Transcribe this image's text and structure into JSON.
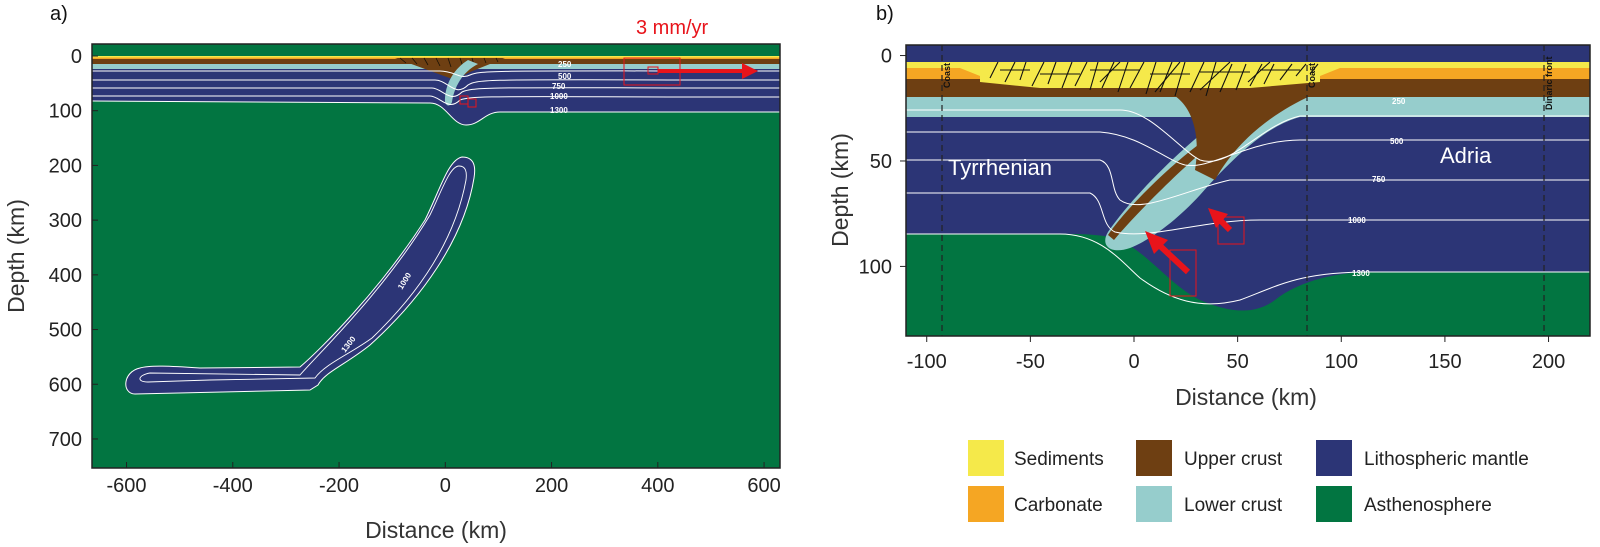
{
  "panel_a": {
    "label": "a)",
    "xlabel": "Distance (km)",
    "ylabel": "Depth (km)",
    "xticks": [
      "-600",
      "-400",
      "-200",
      "0",
      "200",
      "400",
      "600"
    ],
    "yticks": [
      "0",
      "100",
      "200",
      "300",
      "400",
      "500",
      "600",
      "700"
    ],
    "xlim": [
      -665,
      630
    ],
    "ylim": [
      0,
      775
    ],
    "isotherms": [
      "250",
      "500",
      "750",
      "1000",
      "1300"
    ],
    "slab_isotherms": [
      "1000",
      "1300"
    ],
    "rate_label": "3 mm/yr"
  },
  "panel_b": {
    "label": "b)",
    "xlabel": "Distance (km)",
    "ylabel": "Depth (km)",
    "xticks": [
      "-100",
      "-50",
      "0",
      "50",
      "100",
      "150",
      "200"
    ],
    "yticks": [
      "0",
      "50",
      "100"
    ],
    "xlim": [
      -110,
      220
    ],
    "ylim": [
      -5,
      133
    ],
    "isotherms": [
      "250",
      "500",
      "750",
      "1000",
      "1300"
    ],
    "region_left": "Tyrrhenian",
    "region_right": "Adria",
    "markers": [
      "Coast",
      "Coast",
      "Dinaric front"
    ]
  },
  "legend": {
    "items": [
      {
        "label": "Sediments",
        "color": "#f5e94a"
      },
      {
        "label": "Carbonate",
        "color": "#f5a623"
      },
      {
        "label": "Upper crust",
        "color": "#6e3f12"
      },
      {
        "label": "Lower crust",
        "color": "#96cdcc"
      },
      {
        "label": "Lithospheric mantle",
        "color": "#2c3576"
      },
      {
        "label": "Asthenosphere",
        "color": "#027541"
      }
    ]
  },
  "colors": {
    "sediments": "#f5e94a",
    "carbonate": "#f5a623",
    "upper_crust": "#6e3f12",
    "lower_crust": "#96cdcc",
    "mantle": "#2c3576",
    "asthenosphere": "#027541",
    "arrow": "#e8141b"
  }
}
